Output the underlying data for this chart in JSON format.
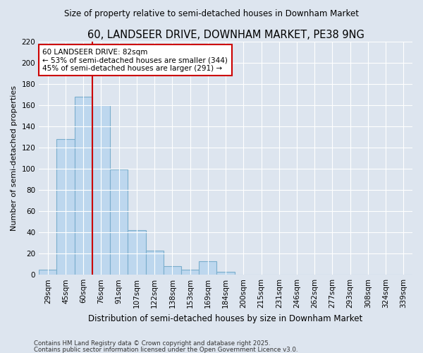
{
  "title": "60, LANDSEER DRIVE, DOWNHAM MARKET, PE38 9NG",
  "subtitle": "Size of property relative to semi-detached houses in Downham Market",
  "xlabel": "Distribution of semi-detached houses by size in Downham Market",
  "ylabel": "Number of semi-detached properties",
  "categories": [
    "29sqm",
    "45sqm",
    "60sqm",
    "76sqm",
    "91sqm",
    "107sqm",
    "122sqm",
    "138sqm",
    "153sqm",
    "169sqm",
    "184sqm",
    "200sqm",
    "215sqm",
    "231sqm",
    "246sqm",
    "262sqm",
    "277sqm",
    "293sqm",
    "308sqm",
    "324sqm",
    "339sqm"
  ],
  "values": [
    5,
    128,
    168,
    160,
    99,
    42,
    23,
    8,
    5,
    13,
    3,
    0,
    0,
    0,
    0,
    0,
    0,
    0,
    0,
    0,
    0
  ],
  "bar_color": "#bdd7ee",
  "bar_edge_color": "#7aaecc",
  "property_line_index": 2.5,
  "annotation_title": "60 LANDSEER DRIVE: 82sqm",
  "annotation_line1": "← 53% of semi-detached houses are smaller (344)",
  "annotation_line2": "45% of semi-detached houses are larger (291) →",
  "annotation_box_color": "#ffffff",
  "annotation_box_edge": "#cc0000",
  "property_line_color": "#cc0000",
  "ylim": [
    0,
    220
  ],
  "yticks": [
    0,
    20,
    40,
    60,
    80,
    100,
    120,
    140,
    160,
    180,
    200,
    220
  ],
  "background_color": "#dde5ef",
  "plot_background": "#dde5ef",
  "grid_color": "#ffffff",
  "footnote1": "Contains HM Land Registry data © Crown copyright and database right 2025.",
  "footnote2": "Contains public sector information licensed under the Open Government Licence v3.0."
}
